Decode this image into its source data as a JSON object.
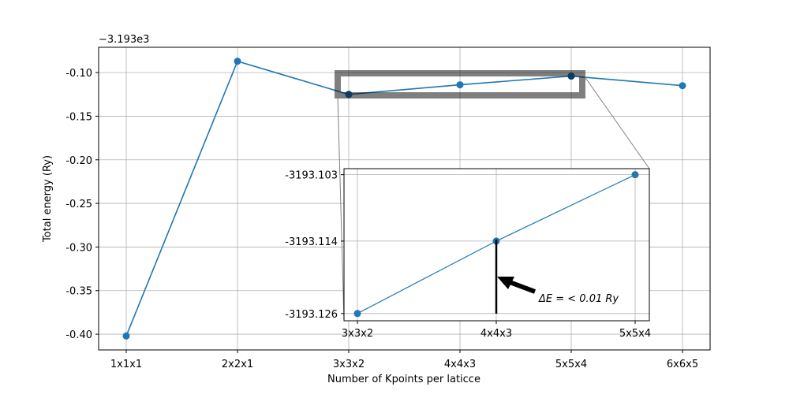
{
  "chart_data": [
    {
      "type": "line",
      "role": "main",
      "categories": [
        "1x1x1",
        "2x2x1",
        "3x3x2",
        "4x4x3",
        "5x5x4",
        "6x6x5"
      ],
      "values": [
        -0.402,
        -0.087,
        -0.125,
        -0.114,
        -0.104,
        -0.115
      ],
      "offset_label": "−3.193e3",
      "xlabel": "Number of Kpoints per laticce",
      "ylabel": "Total energy (Ry)",
      "yticks": [
        "-0.10",
        "-0.15",
        "-0.20",
        "-0.25",
        "-0.30",
        "-0.35",
        "-0.40"
      ],
      "ytick_values": [
        -0.1,
        -0.15,
        -0.2,
        -0.25,
        -0.3,
        -0.35,
        -0.4
      ],
      "ylim": [
        -0.418,
        -0.071
      ],
      "grid": true,
      "color": "#1f77b4"
    },
    {
      "type": "line",
      "role": "inset",
      "categories": [
        "3x3x2",
        "4x4x3",
        "5x5x4"
      ],
      "values": [
        -3193.126,
        -3193.114,
        -3193.103
      ],
      "yticks": [
        "-3193.103",
        "-3193.114",
        "-3193.126"
      ],
      "ytick_values": [
        -3193.103,
        -3193.114,
        -3193.126
      ],
      "ylim": [
        -3193.1272,
        -3193.102
      ],
      "grid": true,
      "color": "#1f77b4",
      "annotation": {
        "text": "ΔE = < 0.01 Ry",
        "points_to_category": "4x4x3"
      }
    }
  ]
}
